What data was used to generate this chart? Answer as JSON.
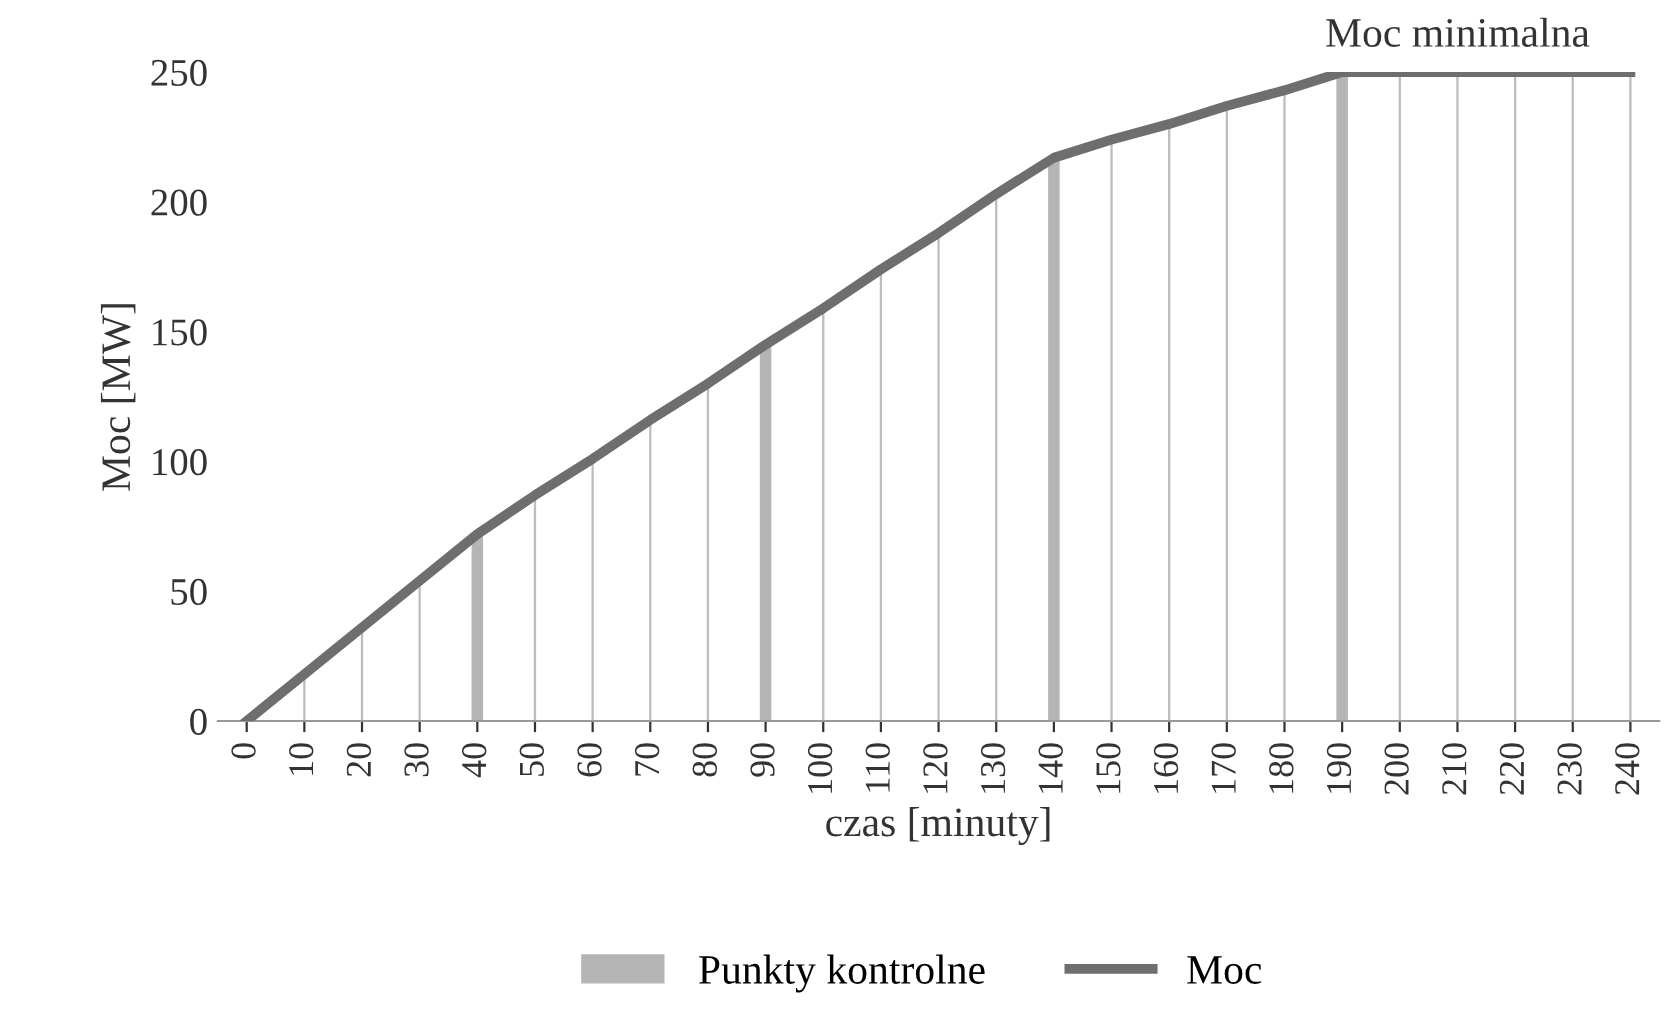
{
  "chart_data": {
    "type": "bar",
    "xlabel": "czas [minuty]",
    "ylabel": "Moc [MW]",
    "categories": [
      "0",
      "10",
      "20",
      "30",
      "40",
      "50",
      "60",
      "70",
      "80",
      "90",
      "100",
      "110",
      "120",
      "130",
      "140",
      "150",
      "160",
      "170",
      "180",
      "190",
      "200",
      "210",
      "220",
      "230",
      "240"
    ],
    "series": [
      {
        "color": "#bdbdbd",
        "values": [
          0,
          18,
          36,
          54,
          null,
          87,
          101,
          116,
          130,
          null,
          159,
          174,
          188,
          203,
          null,
          224,
          230,
          237,
          243,
          null,
          250,
          250,
          250,
          250,
          250
        ]
      },
      {
        "name": "Punkty kontrolne",
        "type": "bar",
        "color": "#b5b5b5",
        "values": [
          null,
          null,
          null,
          null,
          72,
          null,
          null,
          null,
          null,
          145,
          null,
          null,
          null,
          null,
          217,
          null,
          null,
          null,
          null,
          250,
          null,
          null,
          null,
          null,
          null
        ]
      },
      {
        "name": "Moc",
        "type": "line",
        "color": "#6e6e6e",
        "values": [
          0,
          18,
          36,
          54,
          72,
          87,
          101,
          116,
          130,
          145,
          159,
          174,
          188,
          203,
          217,
          224,
          230,
          237,
          243,
          250,
          250,
          250,
          250,
          250,
          250
        ]
      }
    ],
    "ylim": [
      0,
      250
    ],
    "yticks": [
      0,
      50,
      100,
      150,
      200,
      250
    ],
    "grid": false,
    "legend": "bottom",
    "marker": "none",
    "line_style": "solid",
    "annotations": [
      {
        "text": "Moc minimalna",
        "x": "210",
        "y": 250
      }
    ]
  }
}
